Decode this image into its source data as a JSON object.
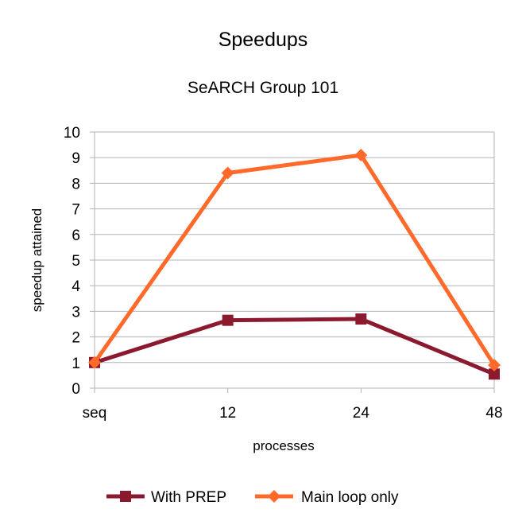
{
  "chart_data": {
    "type": "line",
    "title": "Speedups",
    "subtitle": "SeARCH Group 101",
    "xlabel": "processes",
    "ylabel": "speedup attained",
    "categories": [
      "seq",
      "12",
      "24",
      "48"
    ],
    "ylim": [
      0,
      10
    ],
    "yticks": [
      0,
      1,
      2,
      3,
      4,
      5,
      6,
      7,
      8,
      9,
      10
    ],
    "grid": true,
    "legend_position": "bottom",
    "series": [
      {
        "name": "With PREP",
        "values": [
          1.0,
          2.65,
          2.7,
          0.55
        ],
        "color": "#8b1a2e",
        "marker": "square"
      },
      {
        "name": "Main loop only",
        "values": [
          1.0,
          8.4,
          9.1,
          0.9
        ],
        "color": "#ff6a2a",
        "marker": "diamond"
      }
    ]
  }
}
